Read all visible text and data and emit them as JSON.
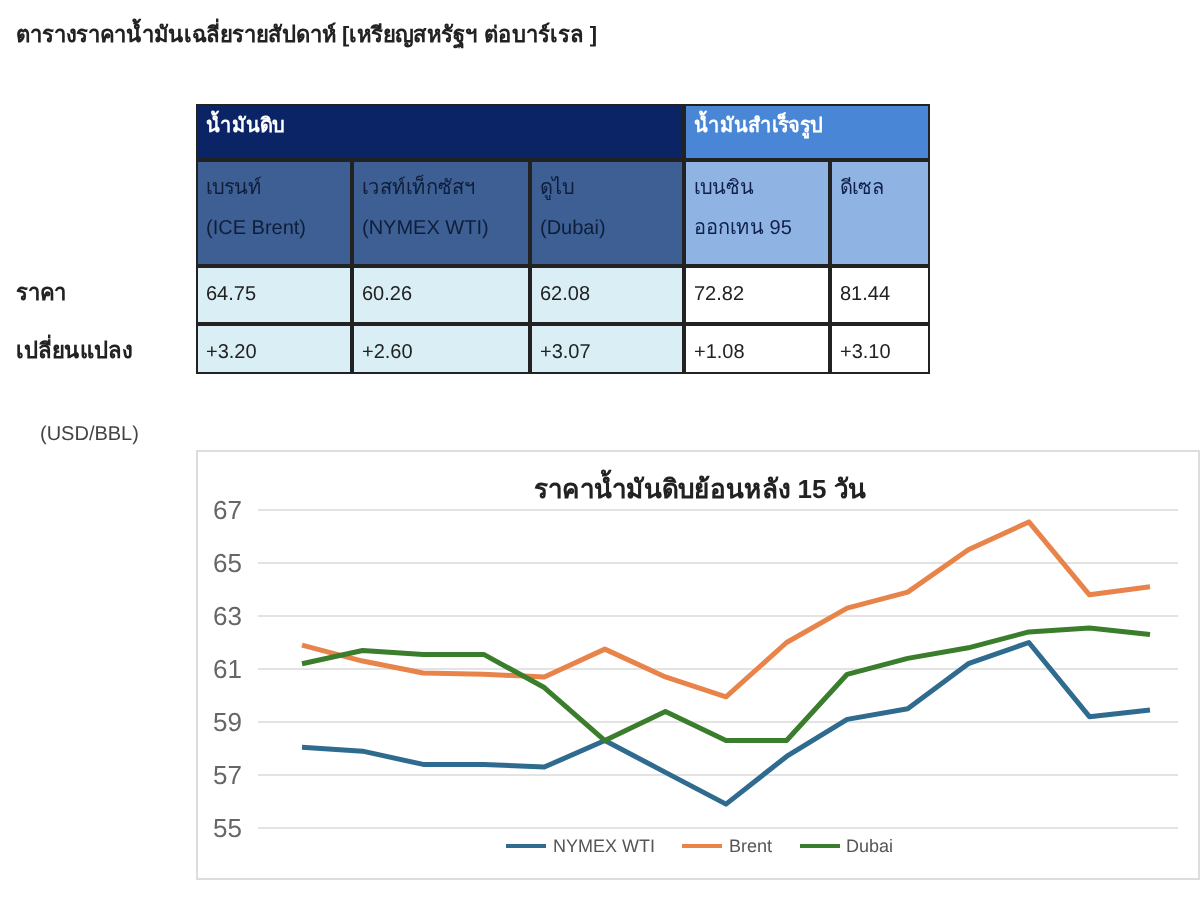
{
  "chart_data": [
    {
      "type": "other",
      "title": "ตารางราคาน้ำมันเฉลี่ยรายสัปดาห์ [เหรียญสหรัฐฯ ต่อบาร์เรล ]",
      "annotations": [
        "น้ำมันดิบ",
        "น้ำมันสำเร็จรูป",
        "เบรนท์",
        "(ICE Brent)",
        "เวสท์เท็กซัสฯ",
        "(NYMEX WTI)",
        "ดูไบ",
        "(Dubai)",
        "เบนซิน",
        "ออกเทน 95",
        "ดีเซล",
        "ราคา",
        "64.75",
        "60.26",
        "62.08",
        "72.82",
        "81.44",
        "เปลี่ยนแปลง",
        "+3.20",
        "+2.60",
        "+3.07",
        "+1.08",
        "+3.10"
      ]
    },
    {
      "type": "line",
      "title": "ราคาน้ำมันดิบย้อนหลัง 15 วัน",
      "ylabel": "(USD/BBL)",
      "categories": [
        null,
        null,
        null,
        null,
        null,
        null,
        null,
        null,
        null,
        null,
        null,
        null,
        null,
        null,
        null
      ],
      "series": [
        {
          "name": "NYMEX WTI",
          "color": "#2e6b8f",
          "values": [
            58.05,
            57.9,
            57.4,
            57.4,
            57.3,
            58.3,
            57.1,
            55.9,
            57.7,
            59.1,
            59.5,
            61.2,
            62.0,
            59.2,
            59.45
          ]
        },
        {
          "name": "Brent",
          "color": "#e8834a",
          "values": [
            61.9,
            61.3,
            60.85,
            60.8,
            60.7,
            61.75,
            60.7,
            59.95,
            62.0,
            63.3,
            63.9,
            65.5,
            66.55,
            63.8,
            64.1
          ]
        },
        {
          "name": "Dubai",
          "color": "#3a7d2c",
          "values": [
            61.2,
            61.7,
            61.55,
            61.55,
            60.3,
            58.3,
            59.4,
            58.3,
            58.3,
            60.8,
            61.4,
            61.8,
            62.4,
            62.55,
            62.3
          ]
        }
      ],
      "ylim": [
        55,
        67
      ],
      "yticks": [
        55,
        57,
        59,
        61,
        63,
        65,
        67
      ],
      "grid": "y",
      "legend": "bottom",
      "tick_labels": "y",
      "marker": "none",
      "line_style": "solid"
    }
  ]
}
